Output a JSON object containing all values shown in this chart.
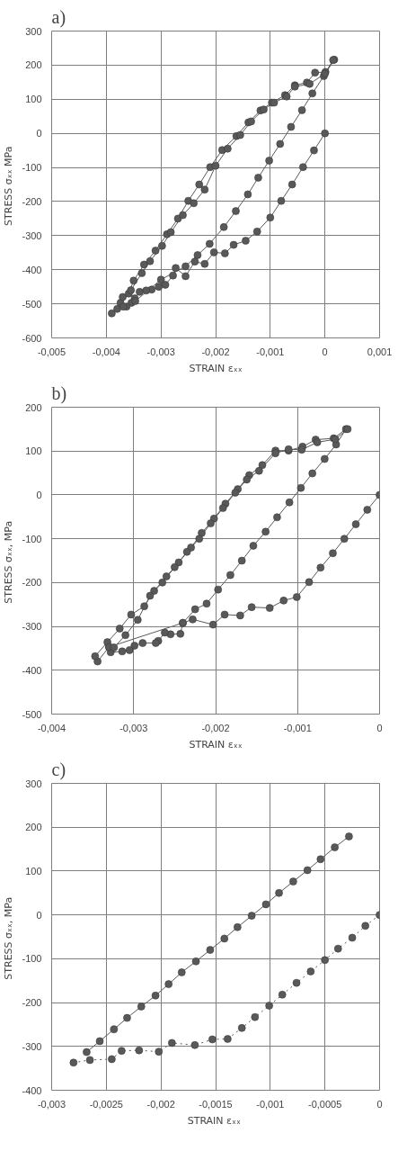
{
  "chart_data": [
    {
      "type": "line",
      "title": "a)",
      "xlabel": "STRAIN εₓₓ",
      "ylabel": "STRESS  σₓₓ MPa",
      "marker": "circle",
      "line_style": "solid",
      "grid": true,
      "xlim": [
        -0.005,
        0.001
      ],
      "xticks": [
        {
          "value": -0.005,
          "label": "-0,005"
        },
        {
          "value": -0.004,
          "label": "-0,004"
        },
        {
          "value": -0.003,
          "label": "-0,003"
        },
        {
          "value": -0.002,
          "label": "-0,002"
        },
        {
          "value": -0.001,
          "label": "-0,001"
        },
        0,
        {
          "value": 0.001,
          "label": "0,001"
        }
      ],
      "ylim": [
        -600,
        300
      ],
      "yticks": [
        -600,
        -500,
        -400,
        -300,
        -200,
        -100,
        0,
        100,
        200,
        300
      ],
      "series": [
        {
          "color": "#595959",
          "x": [
            0,
            -0.0002,
            -0.0004,
            -0.0006,
            -0.0008,
            -0.001,
            -0.00124,
            -0.00145,
            -0.00167,
            -0.00183,
            -0.00203,
            -0.0022,
            -0.00238,
            -0.00255,
            -0.00273,
            -0.00278,
            -0.00292,
            -0.00304,
            -0.00317,
            -0.00327,
            -0.00339,
            -0.00348,
            -0.00354,
            -0.00363,
            -0.0038,
            -0.0039,
            -0.00374,
            -0.00359,
            -0.0035,
            -0.00331,
            -0.0031,
            -0.00289,
            -0.00269,
            -0.0025,
            -0.0023,
            -0.0021,
            -0.00188,
            -0.00162,
            -0.0014,
            -0.00118,
            -0.00097,
            -0.00073,
            -0.00055,
            -0.00033,
            -0.00018,
            1e-05,
            0.00017,
            -2e-05,
            -0.00023,
            -0.00042,
            -0.00062,
            -0.00082,
            -0.00102,
            -0.00122,
            -0.00141,
            -0.00163,
            -0.00185,
            -0.00211,
            -0.00233,
            -0.00255,
            -0.003,
            -0.00347,
            -0.00369,
            -0.0037,
            -0.00355,
            -0.00335,
            -0.0032,
            -0.00298,
            -0.00282,
            -0.0026,
            -0.0024,
            -0.0022,
            -0.002,
            -0.00178,
            -0.00155,
            -0.00135,
            -0.00112,
            -0.00093,
            -0.0007,
            -0.00055,
            -0.00028,
            0,
            0.00015
          ],
          "values": [
            0,
            -50,
            -99,
            -150,
            -198,
            -247,
            -288,
            -315,
            -327,
            -352,
            -349,
            -383,
            -376,
            -419,
            -395,
            -417,
            -444,
            -450,
            -458,
            -461,
            -465,
            -484,
            -497,
            -508,
            -515,
            -528,
            -497,
            -470,
            -432,
            -385,
            -344,
            -296,
            -250,
            -198,
            -150,
            -99,
            -49,
            -8,
            32,
            67,
            90,
            112,
            141,
            149,
            178,
            180,
            216,
            168,
            117,
            68,
            19,
            -31,
            -80,
            -130,
            -179,
            -228,
            -275,
            -324,
            -357,
            -390,
            -429,
            -492,
            -508,
            -480,
            -460,
            -410,
            -375,
            -330,
            -290,
            -240,
            -205,
            -165,
            -95,
            -45,
            -5,
            35,
            70,
            90,
            108,
            137,
            145,
            175,
            215
          ]
        }
      ]
    },
    {
      "type": "line",
      "title": "b)",
      "xlabel": "STRAIN εₓₓ",
      "ylabel": "STRESS  σₓₓ, MPa",
      "marker": "circle",
      "line_style": "solid",
      "grid": true,
      "xlim": [
        -0.004,
        0
      ],
      "xticks": [
        {
          "value": -0.004,
          "label": "-0,004"
        },
        {
          "value": -0.003,
          "label": "-0,003"
        },
        {
          "value": -0.002,
          "label": "-0,002"
        },
        {
          "value": -0.001,
          "label": "-0,001"
        },
        0
      ],
      "ylim": [
        -500,
        200
      ],
      "yticks": [
        -500,
        -400,
        -300,
        -200,
        -100,
        0,
        100,
        200
      ],
      "series": [
        {
          "color": "#595959",
          "x": [
            0,
            -0.00015,
            -0.00029,
            -0.00043,
            -0.00057,
            -0.00072,
            -0.00086,
            -0.00101,
            -0.00117,
            -0.00134,
            -0.00156,
            -0.0017,
            -0.00189,
            -0.00203,
            -0.00228,
            -0.0024,
            -0.00243,
            -0.00255,
            -0.00262,
            -0.0027,
            -0.00273,
            -0.00289,
            -0.00299,
            -0.00305,
            -0.00314,
            -0.00328,
            -0.0033,
            -0.00344,
            -0.00347,
            -0.00332,
            -0.00317,
            -0.00303,
            -0.00287,
            -0.00275,
            -0.0026,
            -0.00245,
            -0.0023,
            -0.00217,
            -0.00202,
            -0.00188,
            -0.00173,
            -0.00159,
            -0.00143,
            -0.00127,
            -0.00111,
            -0.00094,
            -0.00078,
            -0.00056,
            -0.00041,
            -0.00053,
            -0.00067,
            -0.00082,
            -0.00096,
            -0.0011,
            -0.00125,
            -0.00139,
            -0.00154,
            -0.00168,
            -0.00182,
            -0.00197,
            -0.00211,
            -0.00225,
            -0.0024,
            -0.0033,
            -0.00324,
            -0.0031,
            -0.00295,
            -0.0028,
            -0.00265,
            -0.0025,
            -0.00235,
            -0.0022,
            -0.00206,
            -0.00191,
            -0.00176,
            -0.00162,
            -0.00147,
            -0.00127,
            -0.00111,
            -0.00095,
            -0.00076,
            -0.00054,
            -0.00039
          ],
          "values": [
            0,
            -34,
            -67,
            -100,
            -133,
            -166,
            -199,
            -233,
            -241,
            -258,
            -256,
            -275,
            -273,
            -296,
            -284,
            -292,
            -317,
            -318,
            -314,
            -333,
            -338,
            -338,
            -344,
            -354,
            -357,
            -359,
            -347,
            -380,
            -368,
            -336,
            -305,
            -273,
            -254,
            -219,
            -186,
            -154,
            -120,
            -87,
            -54,
            -20,
            13,
            45,
            68,
            101,
            101,
            110,
            126,
            129,
            150,
            115,
            82,
            49,
            16,
            -17,
            -51,
            -84,
            -116,
            -150,
            -183,
            -216,
            -248,
            -261,
            -292,
            -347,
            -348,
            -320,
            -285,
            -230,
            -200,
            -165,
            -130,
            -100,
            -65,
            -30,
            5,
            35,
            55,
            95,
            104,
            103,
            120,
            127,
            150
          ]
        }
      ]
    },
    {
      "type": "line",
      "title": "c)",
      "xlabel": "STRAIN  εₓₓ",
      "ylabel": "STRESS  σₓₓ, MPa",
      "marker": "circle",
      "grid": true,
      "xlim": [
        -0.003,
        0
      ],
      "xticks": [
        {
          "value": -0.003,
          "label": "-0,003"
        },
        {
          "value": -0.0025,
          "label": "-0,0025"
        },
        {
          "value": -0.002,
          "label": "-0,002"
        },
        {
          "value": -0.0015,
          "label": "-0,0015"
        },
        {
          "value": -0.001,
          "label": "-0,001"
        },
        {
          "value": -0.0005,
          "label": "-0,0005"
        },
        0
      ],
      "ylim": [
        -400,
        300
      ],
      "yticks": [
        -400,
        -300,
        -200,
        -100,
        0,
        100,
        200,
        300
      ],
      "series": [
        {
          "color": "#595959",
          "line_style": "dotted",
          "x": [
            0,
            -0.00013,
            -0.00025,
            -0.00038,
            -0.0005,
            -0.00063,
            -0.00076,
            -0.00089,
            -0.00101,
            -0.00114,
            -0.00126,
            -0.00139,
            -0.00153,
            -0.00169,
            -0.0019,
            -0.00202,
            -0.0022,
            -0.00236,
            -0.00245,
            -0.00265,
            -0.0028
          ],
          "values": [
            0,
            -25,
            -52,
            -77,
            -103,
            -129,
            -155,
            -182,
            -207,
            -233,
            -258,
            -283,
            -284,
            -297,
            -292,
            -312,
            -309,
            -310,
            -329,
            -331,
            -337
          ]
        },
        {
          "color": "#595959",
          "line_style": "solid",
          "x": [
            -0.00268,
            -0.00256,
            -0.00243,
            -0.00231,
            -0.00218,
            -0.00205,
            -0.00193,
            -0.00181,
            -0.00168,
            -0.00155,
            -0.00142,
            -0.0013,
            -0.00117,
            -0.00104,
            -0.00092,
            -0.00079,
            -0.00066,
            -0.00054,
            -0.00041,
            -0.00028
          ],
          "values": [
            -313,
            -288,
            -261,
            -235,
            -209,
            -184,
            -158,
            -131,
            -106,
            -80,
            -54,
            -28,
            -2,
            24,
            50,
            76,
            102,
            127,
            154,
            179
          ]
        }
      ]
    }
  ]
}
